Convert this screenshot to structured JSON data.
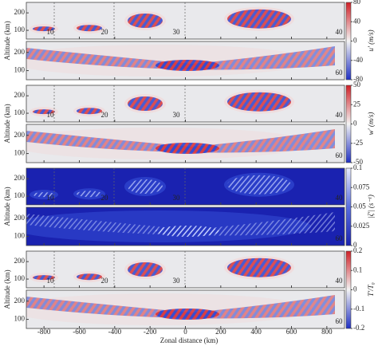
{
  "chart_data": {
    "type": "heatmap-panels",
    "xlabel": "Zonal distance (km)",
    "xlim": [
      -900,
      900
    ],
    "xticks": [
      -800,
      -600,
      -400,
      -200,
      0,
      200,
      400,
      600,
      800
    ],
    "ylabel": "Altitude (km)",
    "ylim": [
      50,
      260
    ],
    "yticks": [
      100,
      200
    ],
    "time_labels_top": [
      10,
      20,
      30,
      40
    ],
    "time_label_bottom": 60,
    "panels": [
      {
        "colorbar_label": "u′ (m/s)",
        "clim": [
          -80,
          80
        ],
        "cticks": [
          -80,
          -40,
          0,
          40,
          80
        ],
        "colors": [
          "#1f2fc4",
          "#f4f4f4",
          "#cf2027"
        ]
      },
      {
        "colorbar_label": "w′ (m/s)",
        "clim": [
          -50,
          50
        ],
        "cticks": [
          -50,
          -25,
          0,
          25,
          50
        ],
        "colors": [
          "#1f2fc4",
          "#f4f4f4",
          "#cf2027"
        ]
      },
      {
        "colorbar_label": "|ζ′| (s⁻¹)",
        "clim": [
          0,
          0.1
        ],
        "cticks": [
          0,
          0.025,
          0.05,
          0.075,
          0.1
        ],
        "colors": [
          "#1a22b0",
          "#5a6fe0",
          "#e8ecff"
        ]
      },
      {
        "colorbar_label": "T′/T₀",
        "clim": [
          -0.2,
          0.2
        ],
        "cticks": [
          -0.2,
          -0.1,
          0,
          0.1,
          0.2
        ],
        "colors": [
          "#1f2fc4",
          "#f4f4f4",
          "#cf2027"
        ]
      }
    ]
  }
}
